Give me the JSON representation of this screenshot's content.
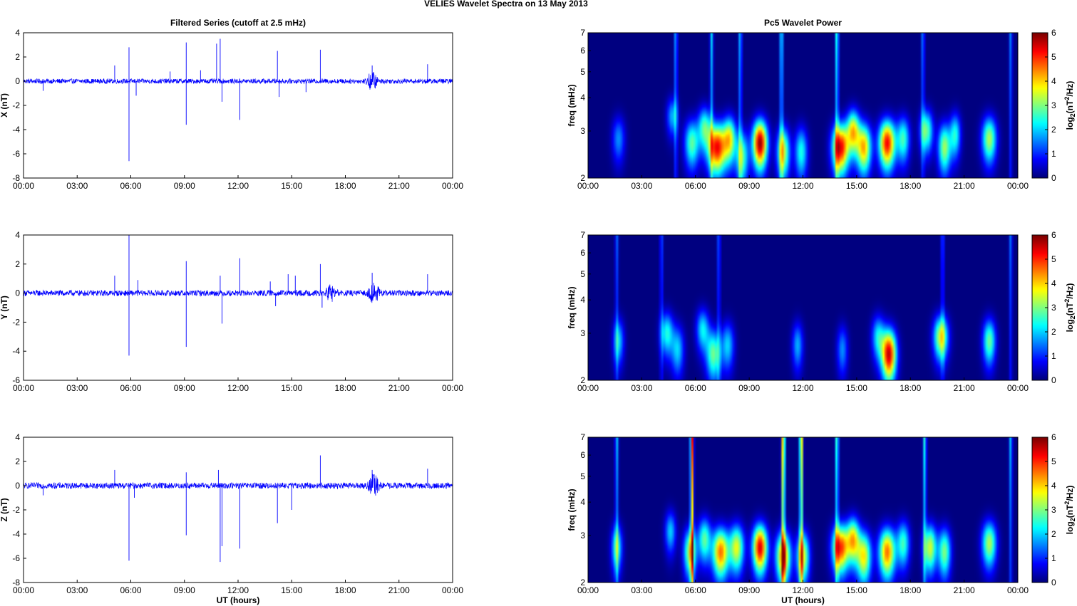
{
  "figure_title": "VELIES Wavelet Spectra on 13 May      2013",
  "colors": {
    "series": "#0000ff",
    "axis": "#000000"
  },
  "chart_data": [
    {
      "id": "x-series",
      "type": "line",
      "title": "Filtered Series (cutoff at 2.5 mHz)",
      "xlabel": "",
      "ylabel": "X (nT)",
      "xlim": [
        0,
        24
      ],
      "ylim": [
        -8,
        4
      ],
      "xticks": [
        "00:00",
        "03:00",
        "06:00",
        "09:00",
        "12:00",
        "15:00",
        "18:00",
        "21:00",
        "00:00"
      ],
      "yticks": [
        -8,
        -6,
        -4,
        -2,
        0,
        2,
        4
      ],
      "baseline_amplitude": 0.2,
      "burst_regions": [
        {
          "x": 19.5,
          "amp": 0.7
        }
      ],
      "spikes": [
        [
          1.1,
          -0.8
        ],
        [
          5.1,
          1.3
        ],
        [
          5.9,
          2.8
        ],
        [
          5.9,
          -6.6
        ],
        [
          6.3,
          -1.2
        ],
        [
          8.2,
          0.8
        ],
        [
          9.1,
          3.2
        ],
        [
          9.1,
          -3.6
        ],
        [
          9.9,
          0.9
        ],
        [
          10.8,
          3.1
        ],
        [
          11.0,
          3.5
        ],
        [
          11.1,
          -1.7
        ],
        [
          12.1,
          -3.2
        ],
        [
          14.2,
          2.5
        ],
        [
          14.3,
          -1.3
        ],
        [
          15.8,
          -0.9
        ],
        [
          16.6,
          2.6
        ],
        [
          19.5,
          1.3
        ],
        [
          22.6,
          1.4
        ]
      ]
    },
    {
      "id": "y-series",
      "type": "line",
      "title": "",
      "xlabel": "",
      "ylabel": "Y (nT)",
      "xlim": [
        0,
        24
      ],
      "ylim": [
        -6,
        4
      ],
      "xticks": [
        "00:00",
        "03:00",
        "06:00",
        "09:00",
        "12:00",
        "15:00",
        "18:00",
        "21:00",
        "00:00"
      ],
      "yticks": [
        -6,
        -4,
        -2,
        0,
        2,
        4
      ],
      "baseline_amplitude": 0.2,
      "burst_regions": [
        {
          "x": 17.2,
          "amp": 0.5
        },
        {
          "x": 19.6,
          "amp": 0.6
        }
      ],
      "spikes": [
        [
          5.1,
          1.2
        ],
        [
          5.9,
          4.0
        ],
        [
          5.9,
          -4.3
        ],
        [
          6.4,
          0.9
        ],
        [
          9.1,
          2.2
        ],
        [
          9.1,
          -3.7
        ],
        [
          11.0,
          1.2
        ],
        [
          11.1,
          -2.1
        ],
        [
          12.1,
          2.4
        ],
        [
          13.8,
          0.8
        ],
        [
          14.1,
          -0.9
        ],
        [
          14.8,
          1.3
        ],
        [
          15.2,
          1.2
        ],
        [
          16.6,
          2.0
        ],
        [
          16.7,
          -1.0
        ],
        [
          19.5,
          1.4
        ],
        [
          22.6,
          1.3
        ]
      ]
    },
    {
      "id": "z-series",
      "type": "line",
      "title": "",
      "xlabel": "UT (hours)",
      "ylabel": "Z (nT)",
      "xlim": [
        0,
        24
      ],
      "ylim": [
        -8,
        4
      ],
      "xticks": [
        "00:00",
        "03:00",
        "06:00",
        "09:00",
        "12:00",
        "15:00",
        "18:00",
        "21:00",
        "00:00"
      ],
      "yticks": [
        -8,
        -6,
        -4,
        -2,
        0,
        2,
        4
      ],
      "baseline_amplitude": 0.25,
      "burst_regions": [
        {
          "x": 19.6,
          "amp": 0.8
        }
      ],
      "spikes": [
        [
          1.1,
          -0.8
        ],
        [
          5.1,
          1.3
        ],
        [
          5.9,
          -6.2
        ],
        [
          6.2,
          -1.0
        ],
        [
          9.1,
          1.1
        ],
        [
          9.1,
          -4.1
        ],
        [
          10.9,
          1.3
        ],
        [
          11.0,
          -6.3
        ],
        [
          11.1,
          -5.0
        ],
        [
          12.1,
          -5.2
        ],
        [
          14.2,
          -3.1
        ],
        [
          15.0,
          -2.0
        ],
        [
          16.6,
          2.5
        ],
        [
          19.5,
          1.3
        ],
        [
          22.6,
          1.4
        ]
      ]
    },
    {
      "id": "x-wavelet",
      "type": "heatmap",
      "title": "Pc5 Wavelet Power",
      "xlabel": "",
      "ylabel": "freq (mHz)",
      "xlim": [
        0,
        24
      ],
      "ylim": [
        2,
        7
      ],
      "yscale": "log",
      "xticks": [
        "00:00",
        "03:00",
        "06:00",
        "09:00",
        "12:00",
        "15:00",
        "18:00",
        "21:00",
        "00:00"
      ],
      "yticks": [
        2,
        3,
        4,
        5,
        6,
        7
      ],
      "colorbar": {
        "label": "log2(nT^2/Hz)",
        "range": [
          0,
          6
        ],
        "ticks": [
          0,
          1,
          2,
          3,
          4,
          5,
          6
        ]
      },
      "blobs": [
        [
          1.7,
          2.8,
          0.35,
          1.6
        ],
        [
          4.7,
          3.4,
          0.3,
          1.8
        ],
        [
          5.8,
          2.7,
          0.4,
          2.8
        ],
        [
          6.5,
          3.1,
          0.35,
          2.6
        ],
        [
          7.2,
          2.6,
          0.5,
          5.3
        ],
        [
          7.9,
          2.8,
          0.35,
          3.5
        ],
        [
          8.6,
          2.4,
          0.35,
          2.8
        ],
        [
          9.6,
          2.7,
          0.4,
          5.9
        ],
        [
          10.9,
          2.5,
          0.35,
          3.5
        ],
        [
          11.9,
          2.5,
          0.35,
          2.4
        ],
        [
          14.1,
          2.6,
          0.45,
          5.4
        ],
        [
          14.8,
          3.0,
          0.35,
          3.8
        ],
        [
          15.4,
          2.6,
          0.4,
          4.2
        ],
        [
          16.7,
          2.7,
          0.45,
          5.3
        ],
        [
          17.6,
          2.8,
          0.35,
          2.6
        ],
        [
          18.9,
          3.0,
          0.35,
          2.9
        ],
        [
          19.9,
          2.6,
          0.35,
          3.2
        ],
        [
          20.5,
          2.9,
          0.3,
          2.4
        ],
        [
          22.4,
          2.8,
          0.4,
          3.3
        ]
      ],
      "streaks": [
        [
          4.9,
          1.9
        ],
        [
          6.9,
          2.1
        ],
        [
          8.5,
          2.1
        ],
        [
          10.8,
          2.6
        ],
        [
          13.9,
          2.8
        ],
        [
          18.7,
          1.7
        ],
        [
          23.6,
          1.6
        ]
      ]
    },
    {
      "id": "y-wavelet",
      "type": "heatmap",
      "title": "",
      "xlabel": "",
      "ylabel": "freq (mHz)",
      "xlim": [
        0,
        24
      ],
      "ylim": [
        2,
        7
      ],
      "yscale": "log",
      "xticks": [
        "00:00",
        "03:00",
        "06:00",
        "09:00",
        "12:00",
        "15:00",
        "18:00",
        "21:00",
        "00:00"
      ],
      "yticks": [
        2,
        3,
        4,
        5,
        6,
        7
      ],
      "colorbar": {
        "label": "log2(nT^2/Hz)",
        "range": [
          0,
          6
        ],
        "ticks": [
          0,
          1,
          2,
          3,
          4,
          5,
          6
        ]
      },
      "blobs": [
        [
          1.7,
          2.8,
          0.3,
          2.0
        ],
        [
          4.4,
          3.0,
          0.35,
          2.4
        ],
        [
          5.0,
          2.6,
          0.35,
          2.0
        ],
        [
          6.4,
          3.1,
          0.35,
          2.2
        ],
        [
          7.0,
          2.5,
          0.4,
          2.9
        ],
        [
          7.8,
          2.7,
          0.35,
          2.0
        ],
        [
          11.7,
          2.7,
          0.3,
          1.8
        ],
        [
          14.2,
          2.6,
          0.3,
          1.6
        ],
        [
          16.2,
          2.9,
          0.35,
          2.2
        ],
        [
          16.8,
          2.5,
          0.4,
          5.6
        ],
        [
          19.7,
          2.9,
          0.4,
          3.6
        ],
        [
          22.4,
          2.8,
          0.35,
          2.9
        ]
      ],
      "streaks": [
        [
          1.6,
          1.4
        ],
        [
          4.1,
          1.3
        ],
        [
          7.3,
          1.4
        ],
        [
          19.8,
          1.4
        ],
        [
          23.6,
          1.5
        ]
      ]
    },
    {
      "id": "z-wavelet",
      "type": "heatmap",
      "title": "",
      "xlabel": "UT (hours)",
      "ylabel": "freq (mHz)",
      "xlim": [
        0,
        24
      ],
      "ylim": [
        2,
        7
      ],
      "yscale": "log",
      "xticks": [
        "00:00",
        "03:00",
        "06:00",
        "09:00",
        "12:00",
        "15:00",
        "18:00",
        "21:00",
        "00:00"
      ],
      "yticks": [
        2,
        3,
        4,
        5,
        6,
        7
      ],
      "colorbar": {
        "label": "log2(nT^2/Hz)",
        "range": [
          0,
          6
        ],
        "ticks": [
          0,
          1,
          2,
          3,
          4,
          5,
          6
        ]
      },
      "blobs": [
        [
          1.6,
          2.7,
          0.3,
          2.5
        ],
        [
          4.6,
          3.1,
          0.3,
          2.0
        ],
        [
          5.7,
          2.6,
          0.35,
          3.4
        ],
        [
          6.5,
          2.9,
          0.35,
          2.8
        ],
        [
          7.4,
          2.6,
          0.45,
          4.6
        ],
        [
          8.3,
          2.7,
          0.4,
          3.6
        ],
        [
          9.6,
          2.7,
          0.4,
          5.5
        ],
        [
          10.9,
          2.5,
          0.4,
          4.6
        ],
        [
          12.0,
          2.5,
          0.35,
          3.6
        ],
        [
          14.1,
          2.7,
          0.45,
          5.0
        ],
        [
          14.8,
          2.9,
          0.35,
          3.8
        ],
        [
          15.4,
          2.5,
          0.4,
          3.8
        ],
        [
          16.7,
          2.6,
          0.45,
          4.6
        ],
        [
          17.6,
          2.8,
          0.35,
          2.6
        ],
        [
          19.1,
          2.7,
          0.35,
          3.5
        ],
        [
          19.9,
          2.6,
          0.35,
          3.0
        ],
        [
          22.4,
          2.8,
          0.4,
          3.3
        ]
      ],
      "streaks": [
        [
          1.6,
          2.0
        ],
        [
          5.8,
          5.6
        ],
        [
          10.9,
          5.0
        ],
        [
          11.9,
          4.6
        ],
        [
          13.9,
          3.0
        ],
        [
          18.8,
          2.6
        ],
        [
          23.6,
          2.0
        ]
      ]
    }
  ]
}
